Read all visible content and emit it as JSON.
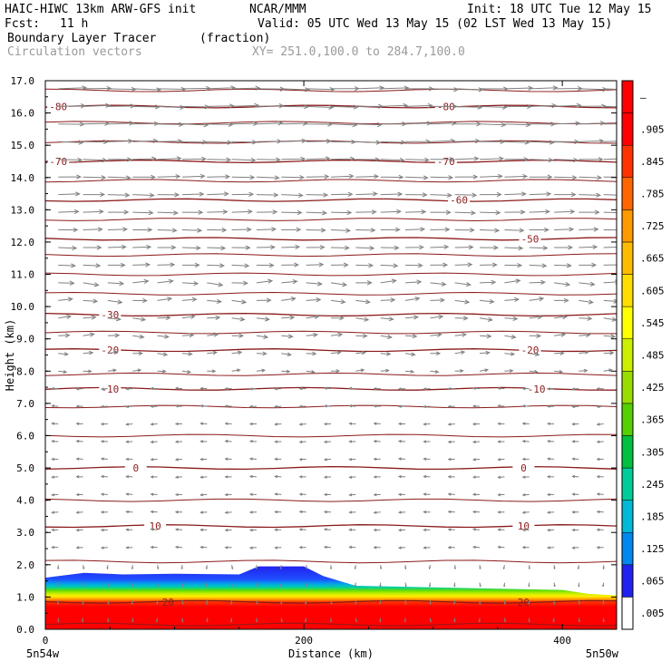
{
  "header": {
    "model": "HAIC-HIWC 13km ARW-GFS init",
    "org": "NCAR/MMM",
    "init": "Init: 18 UTC Tue 12 May 15",
    "fcst_label": "Fcst:",
    "fcst_value": "11 h",
    "valid": "Valid: 05 UTC Wed 13 May 15 (02 LST Wed 13 May 15)",
    "field": "Boundary Layer Tracer",
    "field_units": "(fraction)",
    "overlay": "Circulation vectors",
    "xsection": "XY= 251.0,100.0 to 284.7,100.0"
  },
  "chart_data": {
    "type": "heatmap",
    "title": "Boundary Layer Tracer",
    "xlabel": "Distance (km)",
    "ylabel": "Height (km)",
    "xlim": [
      0,
      442
    ],
    "ylim": [
      0,
      17
    ],
    "x_ticks": [
      "0",
      "200",
      "400"
    ],
    "x_tick_values": [
      0,
      200,
      400
    ],
    "x_end_labels": {
      "left": "5n54w",
      "right": "5n50w"
    },
    "y_ticks": [
      "0.0",
      "1.0",
      "2.0",
      "3.0",
      "4.0",
      "5.0",
      "6.0",
      "7.0",
      "8.0",
      "9.0",
      "10.0",
      "11.0",
      "12.0",
      "13.0",
      "14.0",
      "15.0",
      "16.0",
      "17.0"
    ],
    "colorbar_labels": [
      ".005",
      ".065",
      ".125",
      ".185",
      ".245",
      ".305",
      ".365",
      ".425",
      ".485",
      ".545",
      ".605",
      ".665",
      ".725",
      ".785",
      ".845",
      ".905",
      "–"
    ],
    "colorbar_colors": [
      "#ffffff",
      "#2222ee",
      "#0088ee",
      "#00b8d8",
      "#00cc99",
      "#00c040",
      "#55d000",
      "#99dd00",
      "#ccee00",
      "#ffff00",
      "#ffdd00",
      "#ffbb00",
      "#ff9900",
      "#ff6600",
      "#ff3300",
      "#ff0000",
      "#ff0000"
    ],
    "contour_color": "#8b1a1a",
    "vector_color": "#808080",
    "tracer_top_km": [
      [
        0,
        1.6
      ],
      [
        30,
        1.75
      ],
      [
        60,
        1.7
      ],
      [
        100,
        1.72
      ],
      [
        150,
        1.7
      ],
      [
        165,
        1.95
      ],
      [
        200,
        1.95
      ],
      [
        215,
        1.65
      ],
      [
        240,
        1.35
      ],
      [
        300,
        1.3
      ],
      [
        360,
        1.25
      ],
      [
        400,
        1.22
      ],
      [
        420,
        1.1
      ],
      [
        442,
        1.05
      ]
    ],
    "temperature_contours": [
      {
        "label": "20",
        "height_km": 0.85,
        "label_x_km": [
          95,
          370
        ]
      },
      {
        "label": "10",
        "height_km": 3.2,
        "label_x_km": [
          85,
          370
        ]
      },
      {
        "label": "0",
        "height_km": 5.0,
        "label_x_km": [
          70,
          370
        ]
      },
      {
        "label": "-10",
        "height_km": 7.45,
        "label_x_km": [
          50,
          380
        ]
      },
      {
        "label": "-20",
        "height_km": 8.65,
        "label_x_km": [
          50,
          375
        ]
      },
      {
        "label": "-30",
        "height_km": 9.75,
        "label_x_km": [
          50,
          0
        ]
      },
      {
        "label": "-50",
        "height_km": 12.1,
        "label_x_km": [
          0,
          375
        ]
      },
      {
        "label": "-60",
        "height_km": 13.3,
        "label_x_km": [
          0,
          320
        ]
      },
      {
        "label": "-70",
        "height_km": 14.5,
        "label_x_km": [
          10,
          310
        ]
      },
      {
        "label": "-80",
        "height_km": 16.2,
        "label_x_km": [
          10,
          310
        ]
      }
    ],
    "extra_isotherm_heights_km": [
      0.15,
      2.1,
      4.0,
      6.0,
      6.9,
      7.9,
      9.2,
      10.4,
      11.0,
      11.6,
      12.7,
      13.9,
      15.1,
      15.7,
      16.7
    ]
  }
}
